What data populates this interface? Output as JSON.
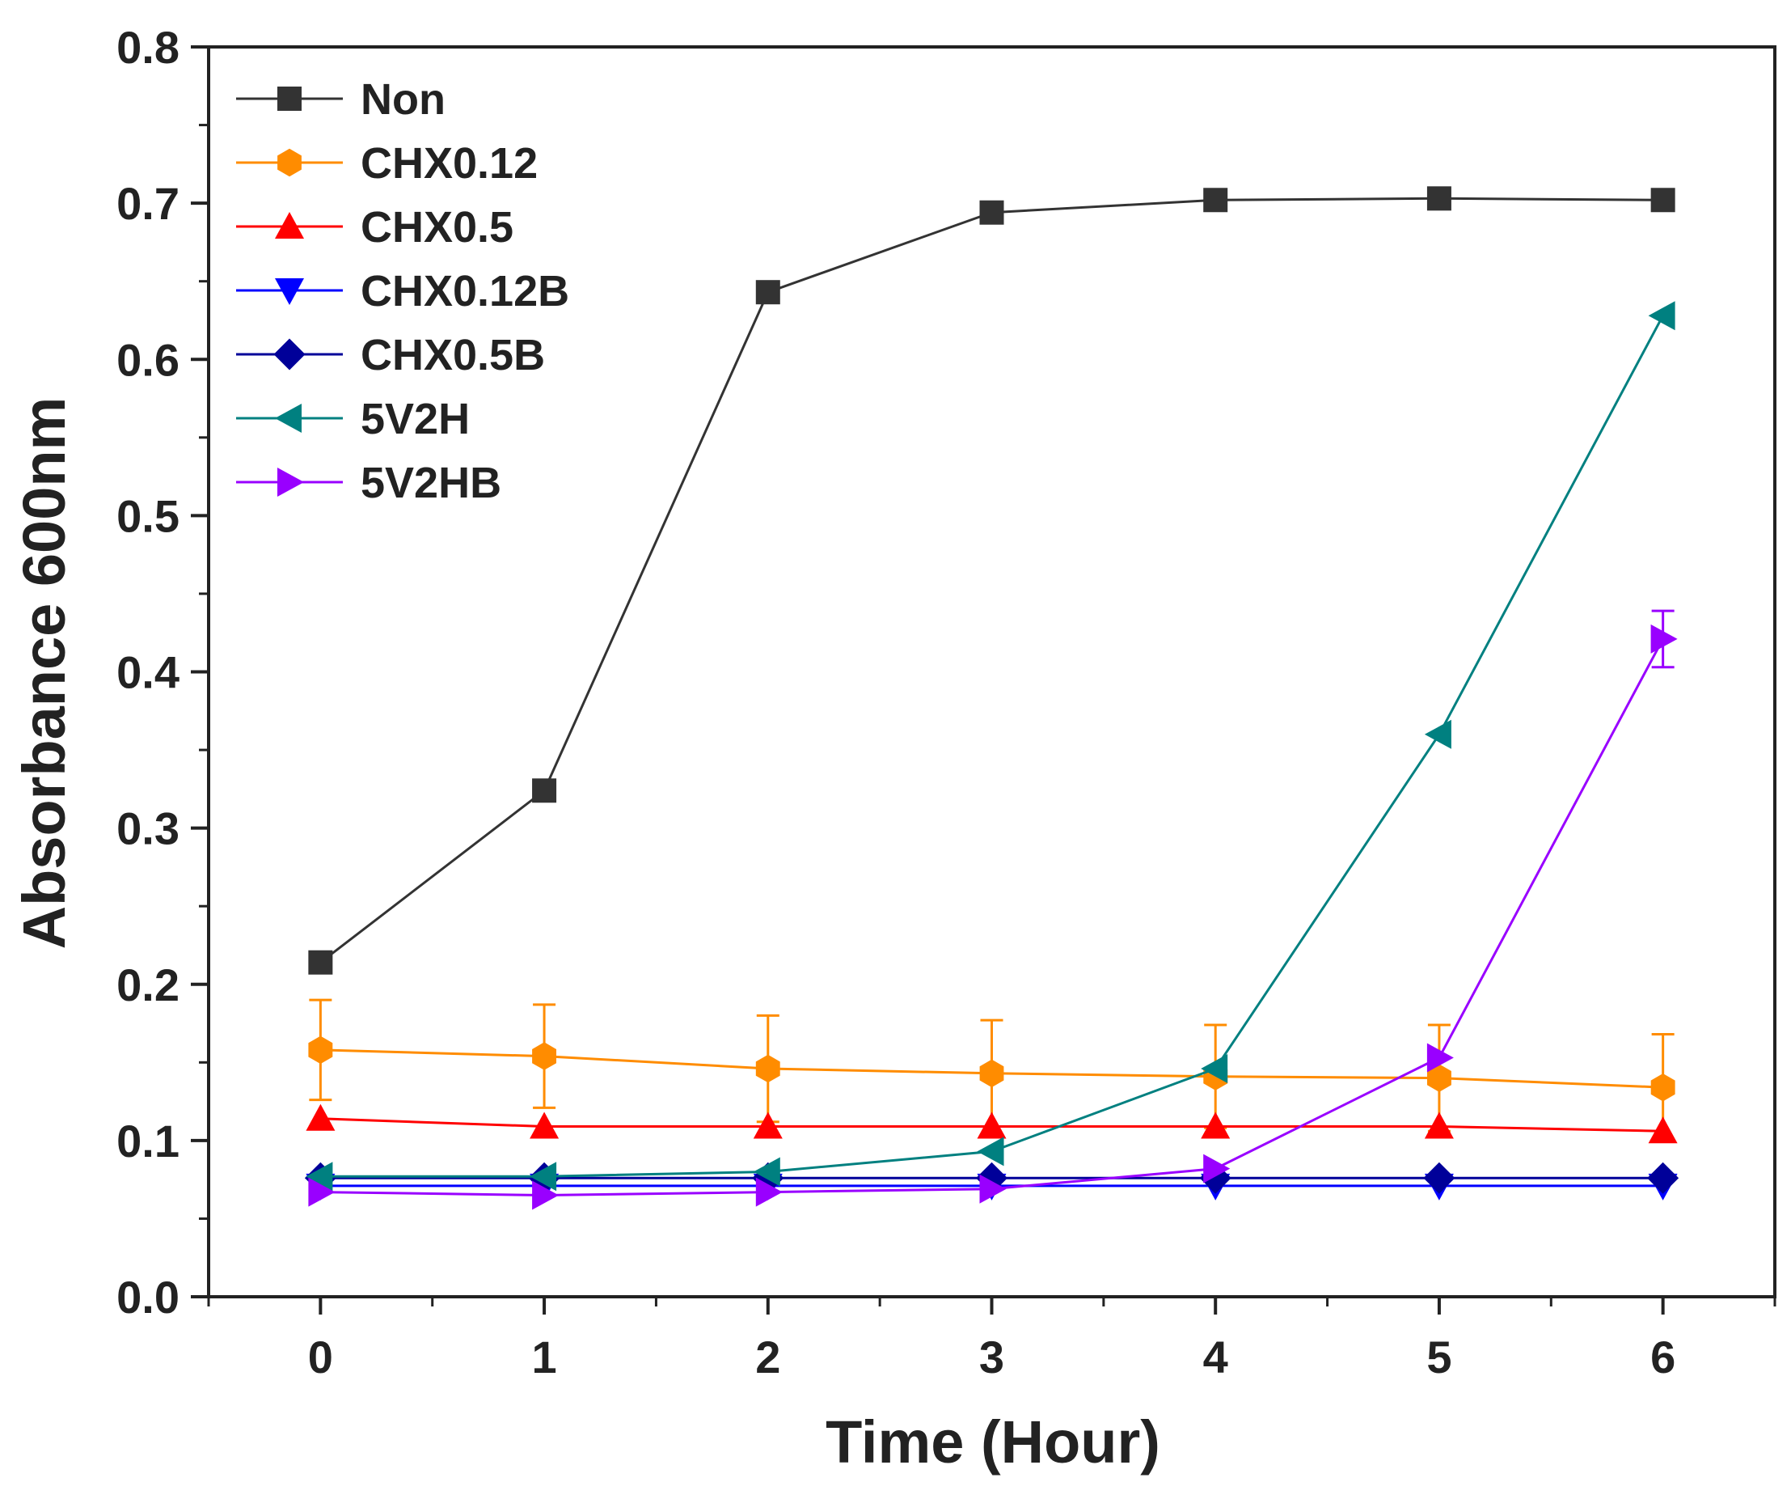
{
  "chart_data": {
    "type": "line",
    "title": "",
    "xlabel": "Time (Hour)",
    "ylabel": "Absorbance 600nm",
    "xlim": [
      -0.5,
      6.5
    ],
    "ylim": [
      0.0,
      0.8
    ],
    "x": [
      0,
      1,
      2,
      3,
      4,
      5,
      6
    ],
    "x_ticks": [
      0,
      1,
      2,
      3,
      4,
      5,
      6
    ],
    "x_tick_labels": [
      "0",
      "1",
      "2",
      "3",
      "4",
      "5",
      "6"
    ],
    "y_ticks": [
      0.0,
      0.1,
      0.2,
      0.3,
      0.4,
      0.5,
      0.6,
      0.7,
      0.8
    ],
    "y_tick_labels": [
      "0.0",
      "0.1",
      "0.2",
      "0.3",
      "0.4",
      "0.5",
      "0.6",
      "0.7",
      "0.8"
    ],
    "grid": false,
    "legend_position": "top-left",
    "series": [
      {
        "name": "Non",
        "color": "#333333",
        "marker": "square",
        "values": [
          0.214,
          0.324,
          0.643,
          0.694,
          0.702,
          0.703,
          0.702
        ],
        "errors": [
          0,
          0,
          0,
          0,
          0,
          0,
          0
        ]
      },
      {
        "name": "CHX0.12",
        "color": "#ff8c00",
        "marker": "hexagon",
        "values": [
          0.158,
          0.154,
          0.146,
          0.143,
          0.141,
          0.14,
          0.134
        ],
        "errors": [
          0.032,
          0.033,
          0.034,
          0.034,
          0.033,
          0.034,
          0.034
        ]
      },
      {
        "name": "CHX0.5",
        "color": "#ff0000",
        "marker": "triangle-up",
        "values": [
          0.114,
          0.109,
          0.109,
          0.109,
          0.109,
          0.109,
          0.106
        ],
        "errors": [
          0,
          0,
          0,
          0,
          0,
          0,
          0
        ]
      },
      {
        "name": "CHX0.12B",
        "color": "#0000ff",
        "marker": "triangle-down",
        "values": [
          0.071,
          0.071,
          0.071,
          0.071,
          0.071,
          0.071,
          0.071
        ],
        "errors": [
          0,
          0,
          0,
          0,
          0,
          0,
          0
        ]
      },
      {
        "name": "CHX0.5B",
        "color": "#000099",
        "marker": "diamond",
        "values": [
          0.076,
          0.076,
          0.076,
          0.076,
          0.076,
          0.076,
          0.076
        ],
        "errors": [
          0,
          0,
          0,
          0,
          0,
          0,
          0
        ]
      },
      {
        "name": "5V2H",
        "color": "#008080",
        "marker": "triangle-left",
        "values": [
          0.077,
          0.077,
          0.08,
          0.093,
          0.146,
          0.36,
          0.628
        ],
        "errors": [
          0,
          0,
          0,
          0,
          0,
          0,
          0
        ]
      },
      {
        "name": "5V2HB",
        "color": "#9900ff",
        "marker": "triangle-right",
        "values": [
          0.067,
          0.065,
          0.067,
          0.069,
          0.082,
          0.153,
          0.421
        ],
        "errors": [
          0,
          0,
          0,
          0,
          0,
          0,
          0.018
        ]
      }
    ]
  }
}
